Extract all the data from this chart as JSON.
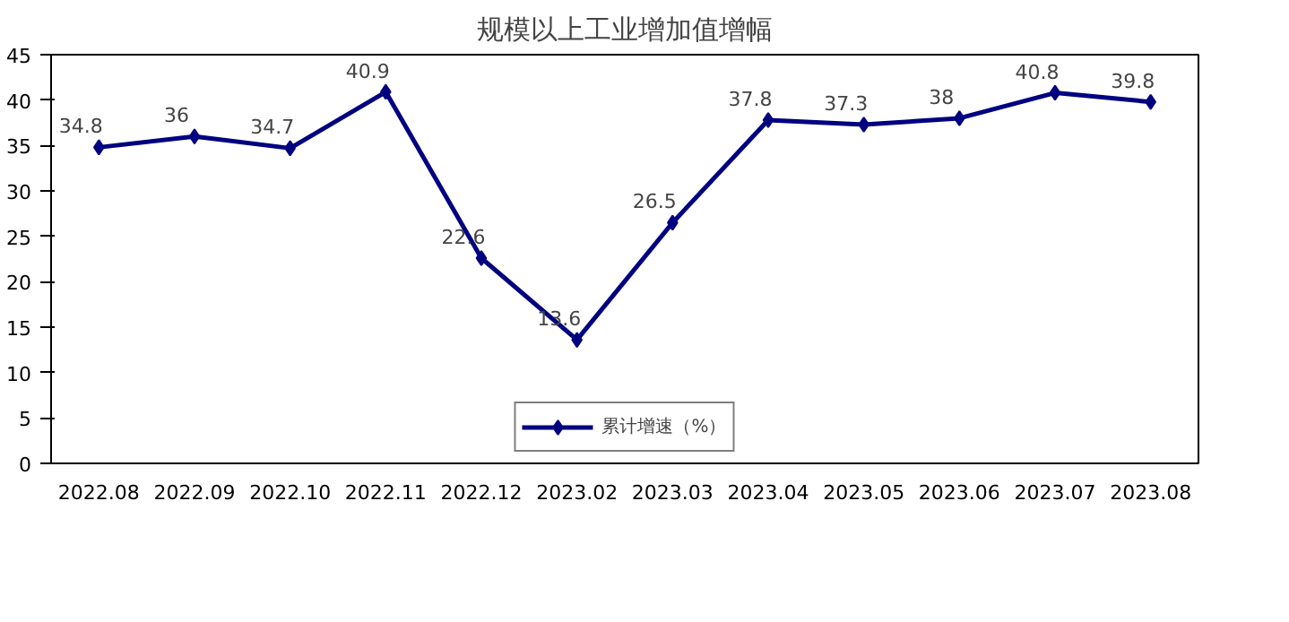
{
  "chart_data": {
    "type": "line",
    "title": "规模以上工业增加值增幅",
    "categories": [
      "2022.08",
      "2022.09",
      "2022.10",
      "2022.11",
      "2022.12",
      "2023.02",
      "2023.03",
      "2023.04",
      "2023.05",
      "2023.06",
      "2023.07",
      "2023.08"
    ],
    "series": [
      {
        "name": "累计增速（%）",
        "color": "#000080",
        "values": [
          34.8,
          36,
          34.7,
          40.9,
          22.6,
          13.6,
          26.5,
          37.8,
          37.3,
          38,
          40.8,
          39.8
        ]
      }
    ],
    "ylim": [
      0,
      45
    ],
    "yticks": [
      0,
      5,
      10,
      15,
      20,
      25,
      30,
      35,
      40,
      45
    ],
    "grid": false,
    "legend": "bottom",
    "marker": "diamond",
    "line_style": "solid",
    "data_labels": true
  }
}
